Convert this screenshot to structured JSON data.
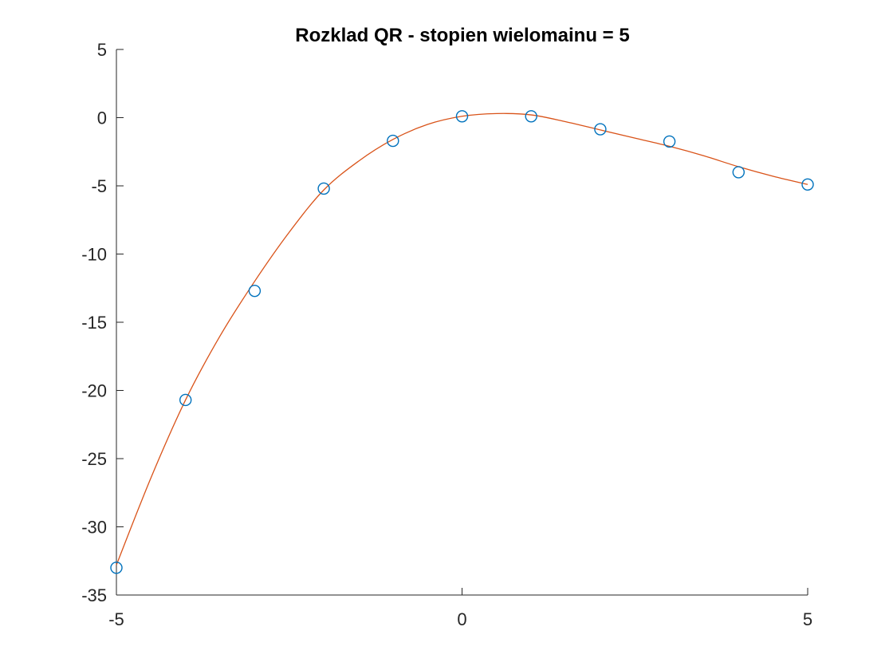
{
  "chart_data": {
    "type": "scatter",
    "title": "Rozklad QR - stopien wielomainu = 5",
    "xlabel": "",
    "ylabel": "",
    "xlim": [
      -5,
      5
    ],
    "ylim": [
      -35,
      5
    ],
    "xticks": [
      -5,
      0,
      5
    ],
    "xtick_labels": [
      "-5",
      "0",
      "5"
    ],
    "yticks": [
      5,
      0,
      -5,
      -10,
      -15,
      -20,
      -25,
      -30,
      -35
    ],
    "ytick_labels": [
      "5",
      "0",
      "-5",
      "-10",
      "-15",
      "-20",
      "-25",
      "-30",
      "-35"
    ],
    "grid": false,
    "legend": "none",
    "series": [
      {
        "kind": "markers",
        "marker": "circle",
        "color": "#0072BD",
        "x": [
          -5,
          -4,
          -3,
          -2,
          -1,
          0,
          1,
          2,
          3,
          4,
          5
        ],
        "y": [
          -33.0,
          -20.7,
          -12.7,
          -5.2,
          -1.7,
          0.1,
          0.1,
          -0.85,
          -1.75,
          -4.0,
          -4.9
        ]
      },
      {
        "kind": "line",
        "color": "#D95319",
        "x": [
          -5,
          -4.5,
          -4,
          -3.5,
          -3,
          -2.5,
          -2,
          -1.5,
          -1,
          -0.5,
          0,
          0.5,
          1,
          1.5,
          2,
          2.5,
          3,
          3.5,
          4,
          4.5,
          5
        ],
        "y": [
          -32.8,
          -26.4,
          -20.7,
          -16.0,
          -12.0,
          -8.4,
          -5.3,
          -3.2,
          -1.6,
          -0.5,
          0.1,
          0.3,
          0.2,
          -0.3,
          -0.9,
          -1.5,
          -2.1,
          -2.8,
          -3.6,
          -4.3,
          -4.9
        ]
      }
    ]
  }
}
